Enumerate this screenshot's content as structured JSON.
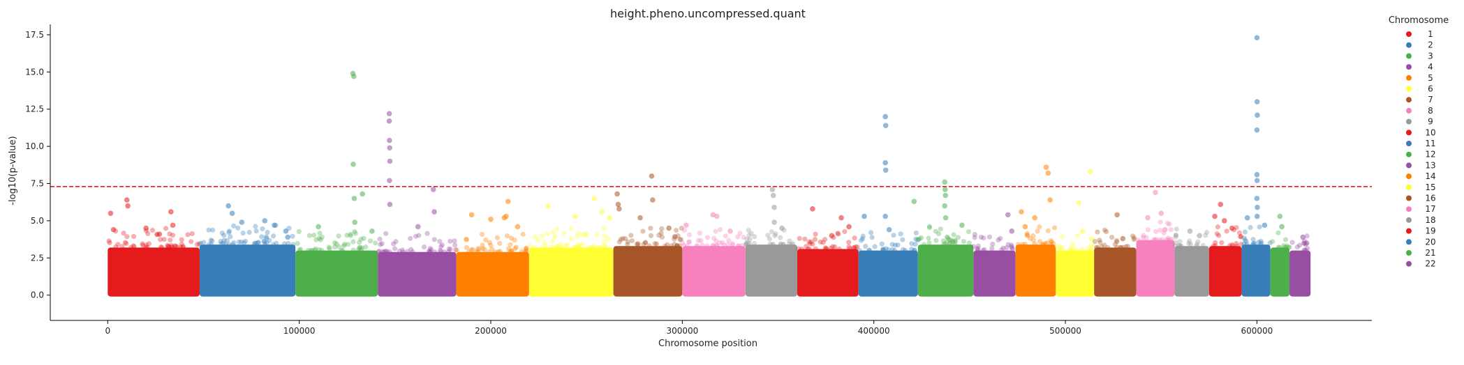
{
  "chart_data": {
    "type": "scatter",
    "subtype": "manhattan",
    "title": "height.pheno.uncompressed.quant",
    "xlabel": "Chromosome position",
    "ylabel": "-log10(p-value)",
    "xlim": [
      -30000,
      660000
    ],
    "ylim": [
      -1.7,
      18.2
    ],
    "xticks": [
      0,
      100000,
      200000,
      300000,
      400000,
      500000,
      600000
    ],
    "xtick_labels": [
      "0",
      "100000",
      "200000",
      "300000",
      "400000",
      "500000",
      "600000"
    ],
    "yticks": [
      0,
      2.5,
      5,
      7.5,
      10,
      12.5,
      15,
      17.5
    ],
    "ytick_labels": [
      "0.0",
      "2.5",
      "5.0",
      "7.5",
      "10.0",
      "12.5",
      "15.0",
      "17.5"
    ],
    "significance_line": 7.3,
    "significance_line_color": "#e41a1c",
    "grid": false,
    "legend_title": "Chromosome",
    "legend_position": "right outside",
    "chromosomes": [
      {
        "name": "1",
        "start": 0,
        "end": 48000,
        "color": "#e41a1c",
        "band_max": 3.2,
        "peaks": [
          [
            1500,
            5.5
          ],
          [
            3000,
            4.4
          ],
          [
            10000,
            6.4
          ],
          [
            10500,
            6.0
          ],
          [
            20000,
            4.5
          ],
          [
            27000,
            4.1
          ],
          [
            33000,
            5.6
          ],
          [
            34000,
            4.7
          ]
        ]
      },
      {
        "name": "2",
        "start": 48000,
        "end": 98000,
        "color": "#377eb8",
        "band_max": 3.4,
        "peaks": [
          [
            63000,
            6.0
          ],
          [
            65000,
            5.5
          ],
          [
            70000,
            4.9
          ],
          [
            82000,
            5.0
          ],
          [
            87000,
            4.7
          ],
          [
            93000,
            4.3
          ],
          [
            94000,
            3.9
          ]
        ]
      },
      {
        "name": "3",
        "start": 98000,
        "end": 141000,
        "color": "#4daf4a",
        "band_max": 3.0,
        "peaks": [
          [
            128000,
            14.9
          ],
          [
            128500,
            14.7
          ],
          [
            128200,
            8.8
          ],
          [
            128700,
            6.5
          ],
          [
            129000,
            4.9
          ],
          [
            133000,
            6.8
          ],
          [
            110000,
            4.6
          ],
          [
            138000,
            4.3
          ]
        ]
      },
      {
        "name": "4",
        "start": 141000,
        "end": 182000,
        "color": "#984ea3",
        "band_max": 2.9,
        "peaks": [
          [
            147000,
            12.2
          ],
          [
            147000,
            11.7
          ],
          [
            147100,
            10.4
          ],
          [
            147200,
            9.9
          ],
          [
            147300,
            9.0
          ],
          [
            147100,
            7.7
          ],
          [
            147300,
            6.1
          ],
          [
            170000,
            7.1
          ],
          [
            170500,
            5.6
          ],
          [
            162000,
            4.6
          ]
        ]
      },
      {
        "name": "5",
        "start": 182000,
        "end": 220000,
        "color": "#ff7f00",
        "band_max": 2.9,
        "peaks": [
          [
            190000,
            5.4
          ],
          [
            200000,
            5.1
          ],
          [
            207000,
            5.2
          ],
          [
            208000,
            5.3
          ],
          [
            209000,
            6.3
          ],
          [
            214000,
            4.6
          ]
        ]
      },
      {
        "name": "6",
        "start": 220000,
        "end": 264000,
        "color": "#ffff33",
        "band_max": 3.2,
        "peaks": [
          [
            230000,
            6.0
          ],
          [
            244000,
            5.3
          ],
          [
            254000,
            6.5
          ],
          [
            258000,
            5.6
          ],
          [
            262000,
            5.2
          ]
        ]
      },
      {
        "name": "7",
        "start": 264000,
        "end": 300000,
        "color": "#a65628",
        "band_max": 3.3,
        "peaks": [
          [
            266000,
            6.8
          ],
          [
            266500,
            6.1
          ],
          [
            267000,
            5.8
          ],
          [
            284000,
            8.0
          ],
          [
            284500,
            6.4
          ],
          [
            278000,
            5.2
          ],
          [
            293000,
            4.5
          ]
        ]
      },
      {
        "name": "8",
        "start": 300000,
        "end": 333000,
        "color": "#f781bf",
        "band_max": 3.3,
        "peaks": [
          [
            302000,
            4.7
          ],
          [
            316000,
            5.4
          ],
          [
            318000,
            5.3
          ],
          [
            325000,
            4.3
          ]
        ]
      },
      {
        "name": "9",
        "start": 333000,
        "end": 360000,
        "color": "#999999",
        "band_max": 3.4,
        "peaks": [
          [
            347000,
            7.1
          ],
          [
            347500,
            6.7
          ],
          [
            348000,
            5.9
          ],
          [
            348000,
            4.9
          ],
          [
            352000,
            4.5
          ]
        ]
      },
      {
        "name": "10",
        "start": 360000,
        "end": 392000,
        "color": "#e41a1c",
        "band_max": 3.1,
        "peaks": [
          [
            368000,
            5.8
          ],
          [
            383000,
            5.2
          ],
          [
            387000,
            4.6
          ],
          [
            378000,
            4.0
          ]
        ]
      },
      {
        "name": "11",
        "start": 392000,
        "end": 423000,
        "color": "#377eb8",
        "band_max": 3.0,
        "peaks": [
          [
            395000,
            5.3
          ],
          [
            406000,
            12.0
          ],
          [
            406200,
            11.4
          ],
          [
            406000,
            8.9
          ],
          [
            406200,
            8.4
          ],
          [
            406000,
            5.3
          ],
          [
            408000,
            4.4
          ]
        ]
      },
      {
        "name": "12",
        "start": 423000,
        "end": 452000,
        "color": "#4daf4a",
        "band_max": 3.4,
        "peaks": [
          [
            421000,
            6.3
          ],
          [
            437000,
            7.6
          ],
          [
            437200,
            7.1
          ],
          [
            437400,
            6.7
          ],
          [
            437000,
            6.0
          ],
          [
            437500,
            5.2
          ],
          [
            446000,
            4.7
          ]
        ]
      },
      {
        "name": "13",
        "start": 452000,
        "end": 474000,
        "color": "#984ea3",
        "band_max": 3.0,
        "peaks": [
          [
            470000,
            5.4
          ],
          [
            472000,
            4.3
          ]
        ]
      },
      {
        "name": "14",
        "start": 474000,
        "end": 495000,
        "color": "#ff7f00",
        "band_max": 3.4,
        "peaks": [
          [
            477000,
            5.6
          ],
          [
            479000,
            4.6
          ],
          [
            490000,
            8.6
          ],
          [
            491000,
            8.2
          ],
          [
            492000,
            6.4
          ],
          [
            484000,
            5.2
          ]
        ]
      },
      {
        "name": "15",
        "start": 495000,
        "end": 515000,
        "color": "#ffff33",
        "band_max": 3.0,
        "peaks": [
          [
            507000,
            6.2
          ],
          [
            509000,
            4.3
          ],
          [
            513000,
            8.3
          ]
        ]
      },
      {
        "name": "16",
        "start": 515000,
        "end": 537000,
        "color": "#a65628",
        "band_max": 3.2,
        "peaks": [
          [
            527000,
            5.4
          ],
          [
            530000,
            3.8
          ]
        ]
      },
      {
        "name": "17",
        "start": 537000,
        "end": 557000,
        "color": "#f781bf",
        "band_max": 3.7,
        "peaks": [
          [
            543000,
            5.2
          ],
          [
            547000,
            6.9
          ],
          [
            550000,
            5.5
          ],
          [
            552000,
            4.4
          ]
        ]
      },
      {
        "name": "18",
        "start": 557000,
        "end": 575000,
        "color": "#999999",
        "band_max": 3.3,
        "peaks": [
          [
            565000,
            4.3
          ],
          [
            570000,
            4.0
          ]
        ]
      },
      {
        "name": "19",
        "start": 575000,
        "end": 592000,
        "color": "#e41a1c",
        "band_max": 3.3,
        "peaks": [
          [
            578000,
            5.3
          ],
          [
            581000,
            6.1
          ],
          [
            583000,
            5.0
          ],
          [
            587000,
            4.5
          ]
        ]
      },
      {
        "name": "20",
        "start": 592000,
        "end": 607000,
        "color": "#377eb8",
        "band_max": 3.4,
        "peaks": [
          [
            600000,
            17.3
          ],
          [
            600100,
            13.0
          ],
          [
            600200,
            12.1
          ],
          [
            600000,
            11.1
          ],
          [
            600000,
            8.1
          ],
          [
            600100,
            7.7
          ],
          [
            600000,
            6.5
          ],
          [
            600200,
            5.9
          ],
          [
            600100,
            5.3
          ],
          [
            595000,
            5.2
          ],
          [
            604000,
            4.7
          ]
        ]
      },
      {
        "name": "21",
        "start": 607000,
        "end": 617000,
        "color": "#4daf4a",
        "band_max": 3.2,
        "peaks": [
          [
            612000,
            5.3
          ],
          [
            613000,
            4.6
          ]
        ]
      },
      {
        "name": "22",
        "start": 617000,
        "end": 628000,
        "color": "#984ea3",
        "band_max": 3.0,
        "peaks": [
          [
            624000,
            3.9
          ],
          [
            626000,
            3.5
          ]
        ]
      }
    ]
  }
}
